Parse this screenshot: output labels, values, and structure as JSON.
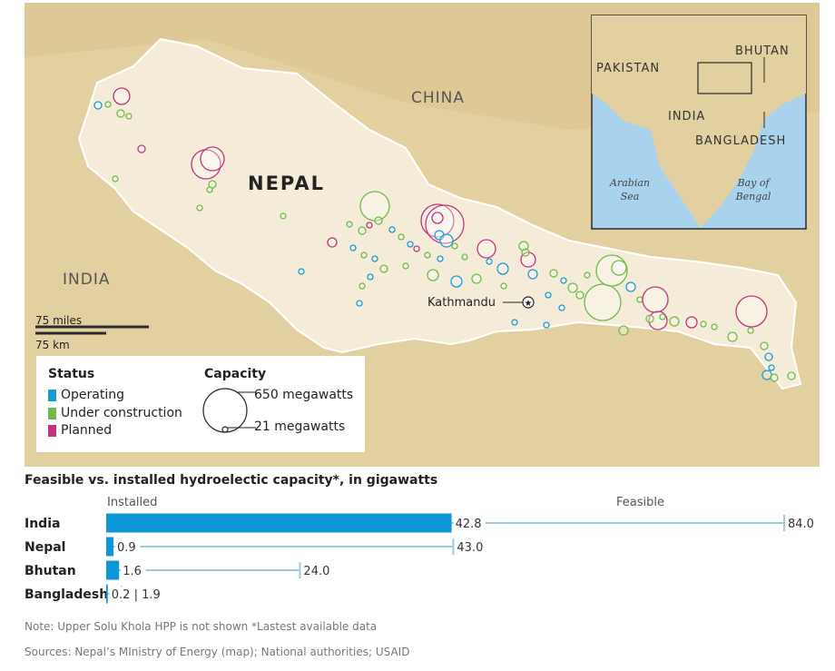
{
  "map": {
    "country_label": "NEPAL",
    "china_label": "CHINA",
    "india_label": "INDIA",
    "capital_label": "Kathmandu",
    "scale_miles": "75 miles",
    "scale_km": "75 km",
    "inset": {
      "pakistan": "PAKISTAN",
      "bhutan": "BHUTAN",
      "india": "INDIA",
      "bangladesh": "BANGLADESH",
      "arabian_sea_1": "Arabian",
      "arabian_sea_2": "Sea",
      "bay_1": "Bay of",
      "bay_2": "Bengal"
    },
    "colors": {
      "operating": "#1a9ad6",
      "construction": "#6cbd45",
      "planned": "#c4327f",
      "land": "#e6d5a8",
      "nepal": "#f4ecd8",
      "water": "#a9d2ec"
    }
  },
  "legend": {
    "status_title": "Status",
    "operating": "Operating",
    "construction": "Under construction",
    "planned": "Planned",
    "capacity_title": "Capacity",
    "cap_large": "650 megawatts",
    "cap_small": "21 megawatts"
  },
  "chart": {
    "title": "Feasible vs. installed hydroelectic capacity*, in gigawatts",
    "installed_header": "Installed",
    "feasible_header": "Feasible"
  },
  "chart_data": {
    "type": "bar",
    "title": "Feasible vs. installed hydroelectic capacity*, in gigawatts",
    "categories": [
      "India",
      "Nepal",
      "Bhutan",
      "Bangladesh"
    ],
    "series": [
      {
        "name": "Installed",
        "values": [
          42.8,
          0.9,
          1.6,
          0.2
        ]
      },
      {
        "name": "Feasible",
        "values": [
          84.0,
          43.0,
          24.0,
          1.9
        ]
      }
    ],
    "value_labels": {
      "installed": [
        "42.8",
        "0.9",
        "1.6",
        "0.2 | 1.9"
      ],
      "feasible": [
        "84.0",
        "43.0",
        "24.0",
        ""
      ]
    },
    "xlim": [
      0,
      84
    ],
    "colors": {
      "installed": "#0e97d8",
      "feasible": "#9ccbe6"
    }
  },
  "footer": {
    "note": "Note: Upper Solu Khola HPP is not shown *Lastest available data",
    "sources": "Sources: Nepal’s MInistry of Energy (map); National authorities; USAID"
  }
}
